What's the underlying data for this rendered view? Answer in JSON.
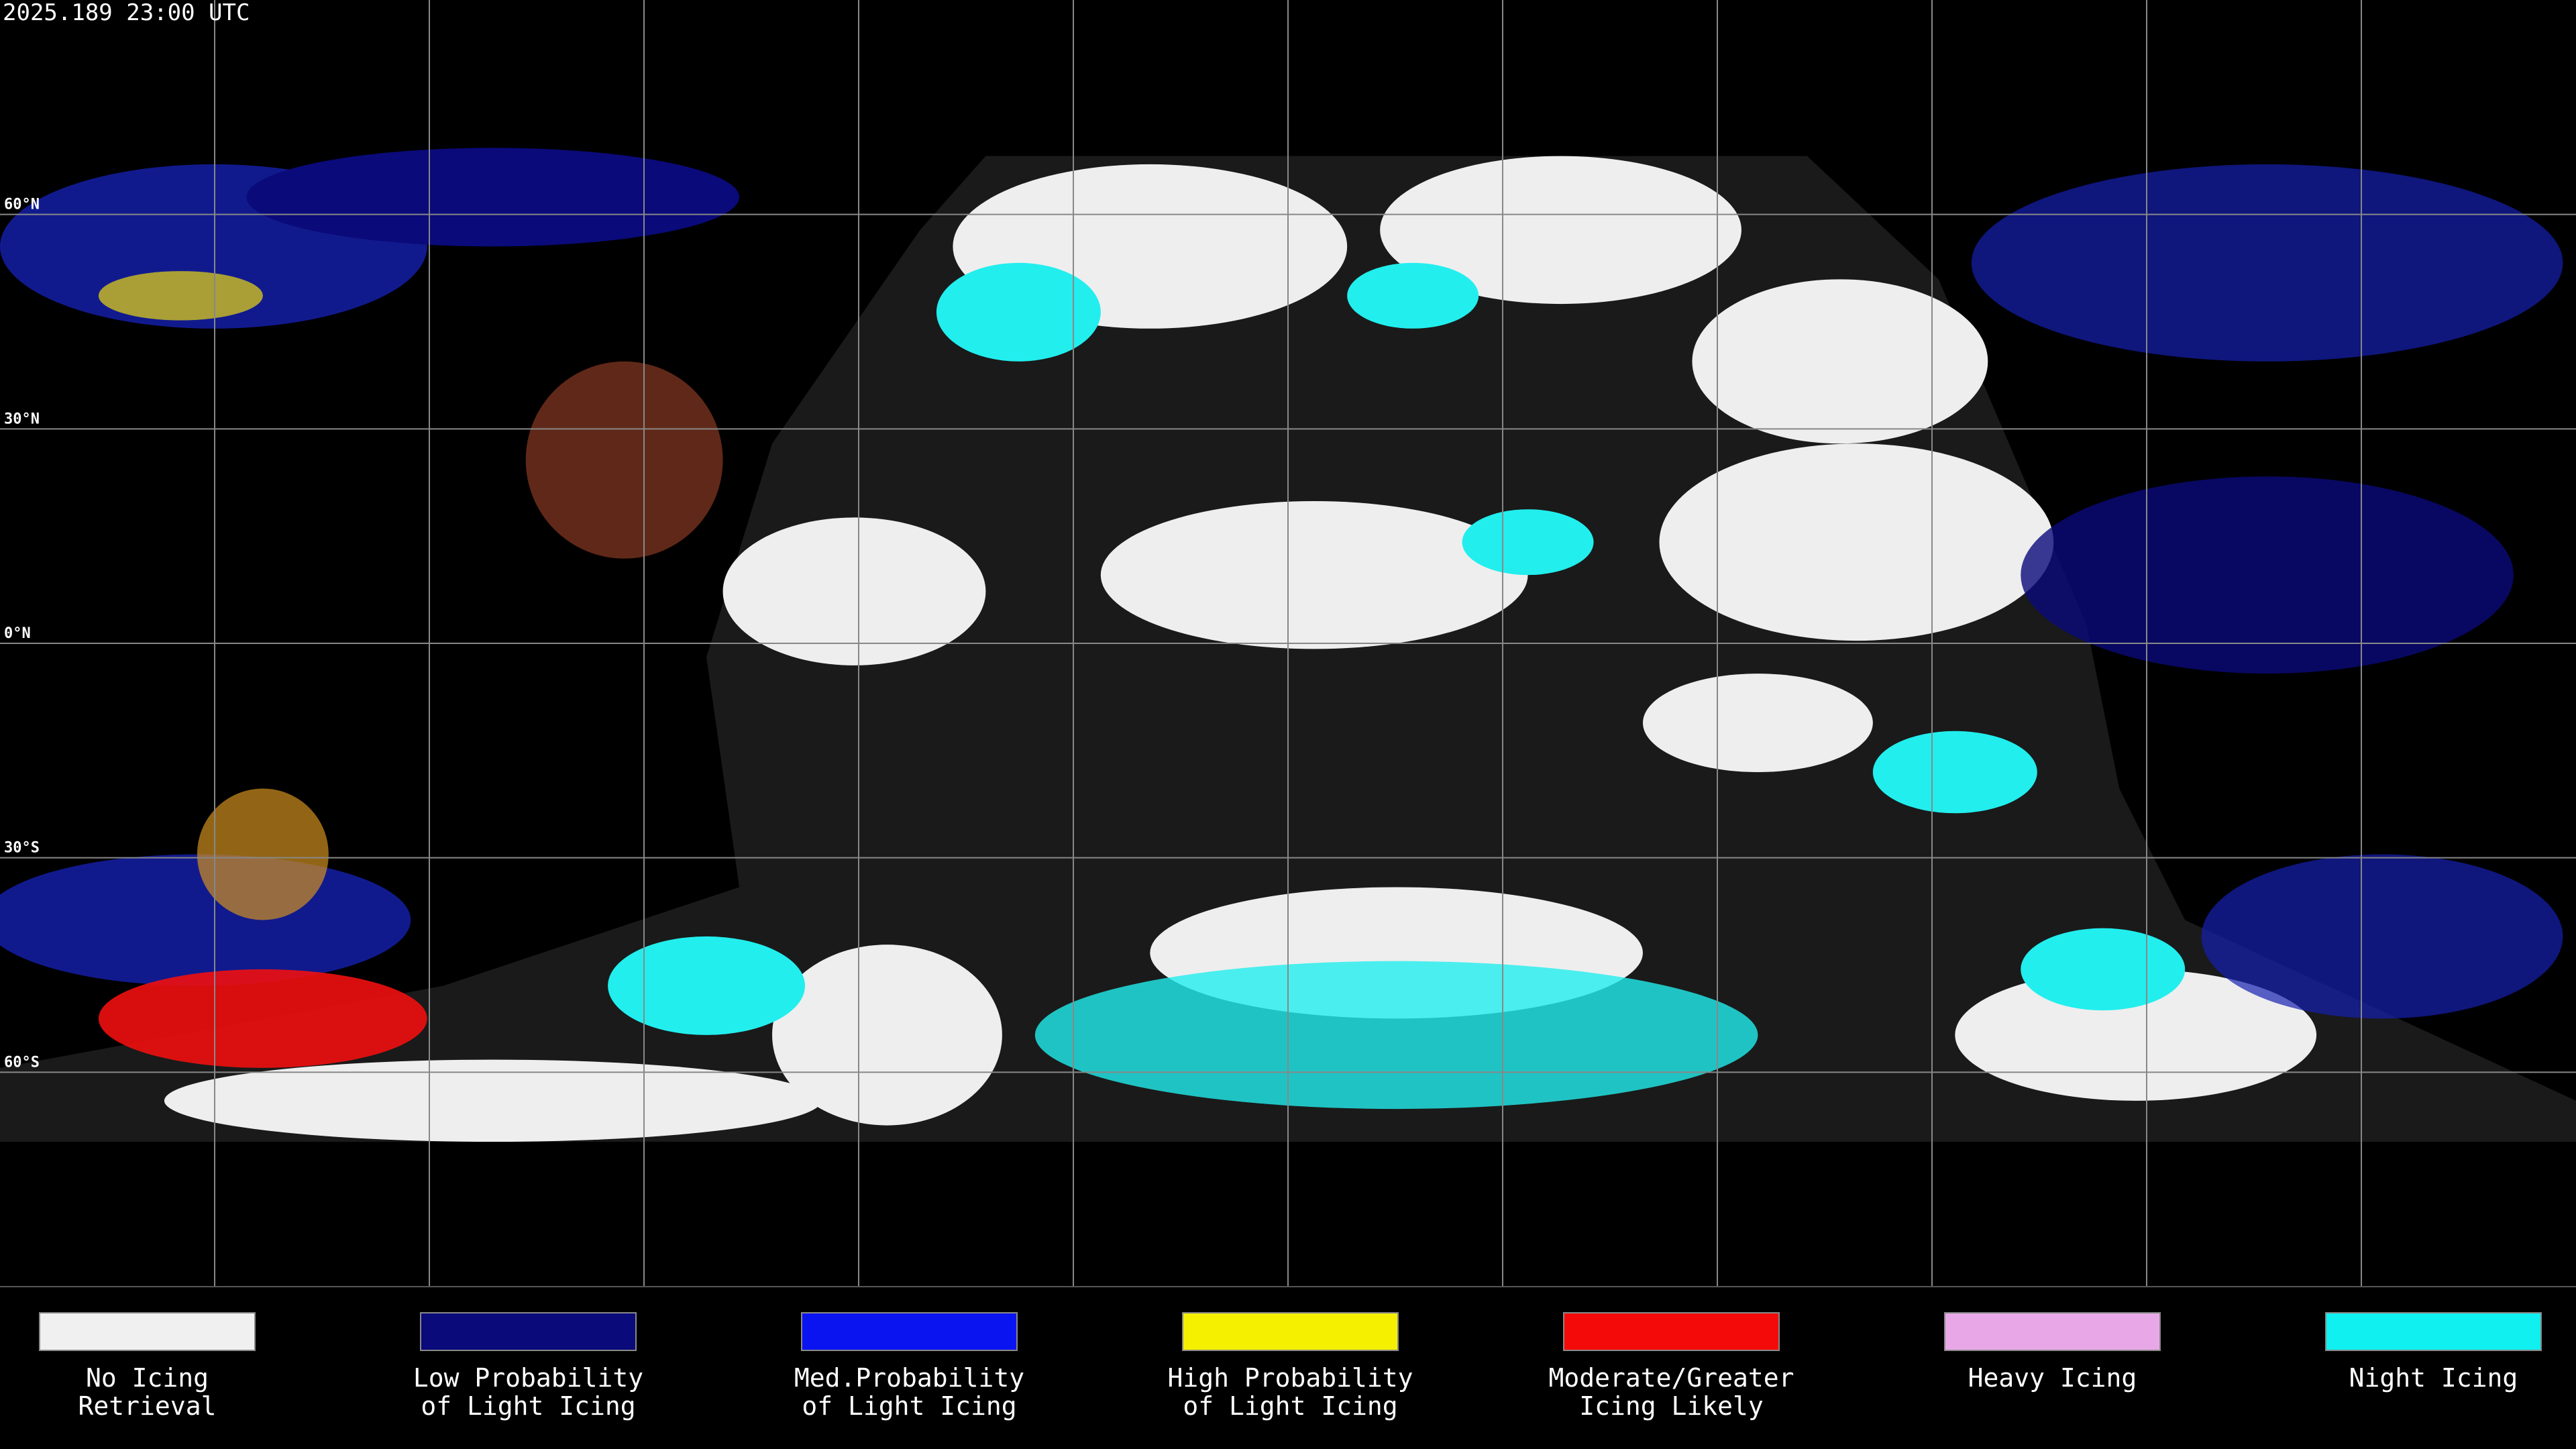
{
  "header": {
    "timestamp": "2025.189 23:00 UTC"
  },
  "map": {
    "lat_labels": [
      "60°N",
      "30°N",
      "0°N",
      "30°S",
      "60°S"
    ]
  },
  "legend": {
    "items": [
      {
        "label": [
          "No Icing",
          "Retrieval"
        ],
        "color": "#f0f0f0"
      },
      {
        "label": [
          "Low Probability",
          "of Light Icing"
        ],
        "color": "#0a0a7a"
      },
      {
        "label": [
          "Med.Probability",
          "of Light Icing"
        ],
        "color": "#0a14f0"
      },
      {
        "label": [
          "High Probability",
          "of Light Icing"
        ],
        "color": "#f5f000"
      },
      {
        "label": [
          "Moderate/Greater",
          "Icing Likely"
        ],
        "color": "#f50a0a"
      },
      {
        "label": [
          "Heavy Icing"
        ],
        "color": "#e8a8e8"
      },
      {
        "label": [
          "Night Icing"
        ],
        "color": "#10f0f0"
      }
    ]
  }
}
